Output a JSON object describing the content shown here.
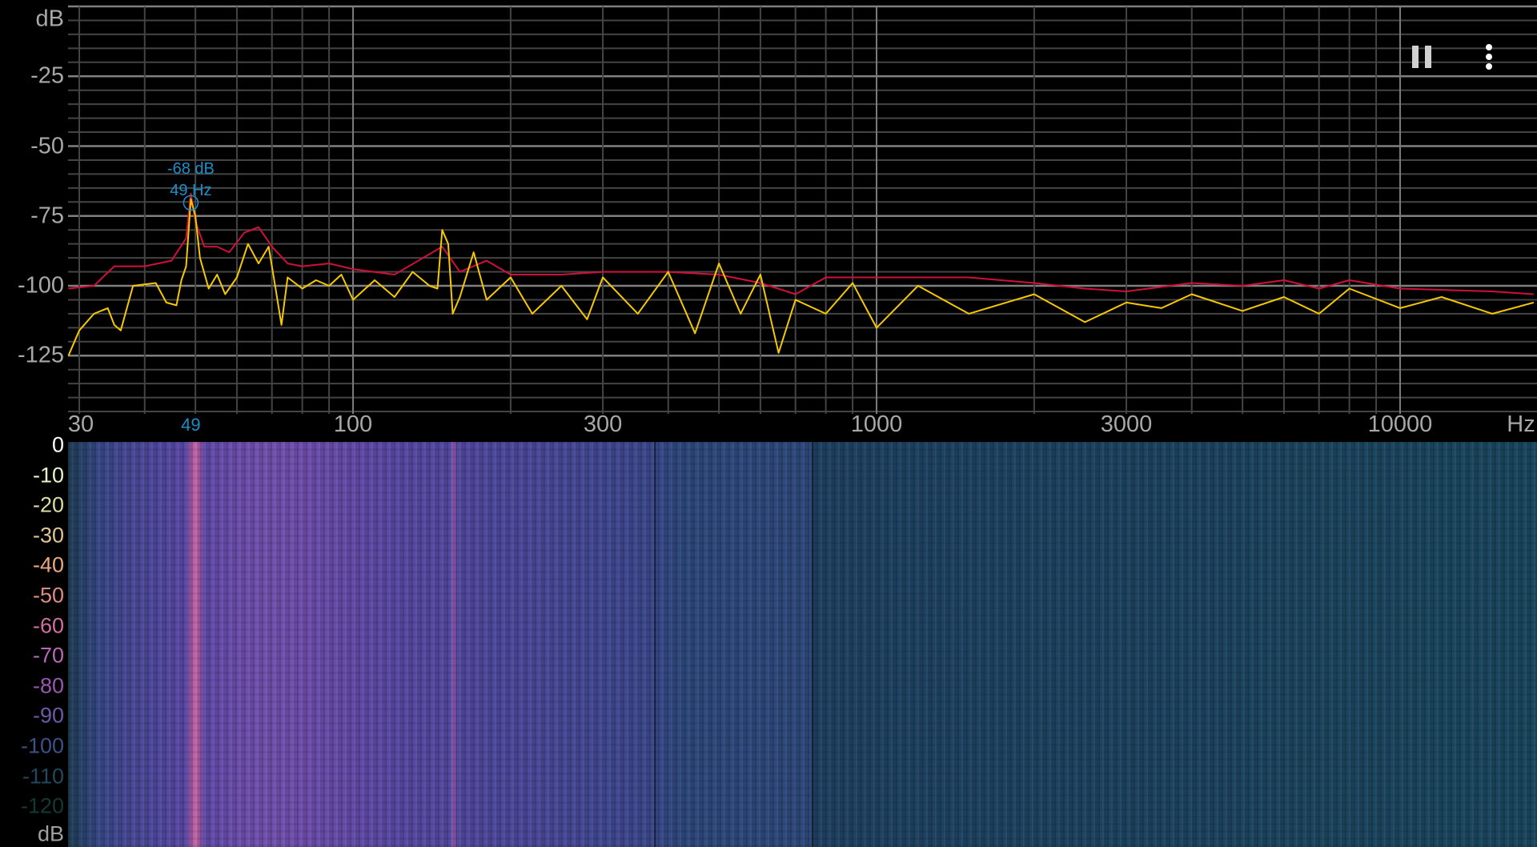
{
  "chart_data": {
    "type": "line",
    "xscale": "log",
    "xlim": [
      28.6,
      18200
    ],
    "ylim": [
      -145,
      0
    ],
    "ylabel": "dB",
    "xlabel": "Hz",
    "grid": true,
    "y_ticks": [
      "dB",
      "-25",
      "-50",
      "-75",
      "-100",
      "-125"
    ],
    "y_tick_values": [
      0,
      -25,
      -50,
      -75,
      -100,
      -125
    ],
    "x_ticks": [
      {
        "label": "30",
        "value": 30
      },
      {
        "label": "100",
        "value": 100
      },
      {
        "label": "300",
        "value": 300
      },
      {
        "label": "1000",
        "value": 1000
      },
      {
        "label": "3000",
        "value": 3000
      },
      {
        "label": "10000",
        "value": 10000
      },
      {
        "label": "Hz",
        "value": 17000
      }
    ],
    "series": [
      {
        "color": "#f5c800",
        "x": [
          28.6,
          30,
          32,
          34,
          35,
          36,
          38,
          42,
          44,
          46,
          47,
          48,
          49,
          50,
          51,
          53,
          55,
          57,
          60,
          63,
          66,
          69,
          71,
          73,
          75,
          80,
          85,
          90,
          95,
          100,
          110,
          120,
          130,
          140,
          145,
          148,
          152,
          155,
          160,
          170,
          180,
          200,
          220,
          250,
          280,
          300,
          350,
          400,
          450,
          500,
          550,
          600,
          650,
          700,
          800,
          900,
          1000,
          1200,
          1500,
          2000,
          2500,
          3000,
          3500,
          4000,
          5000,
          6000,
          7000,
          8000,
          10000,
          12000,
          15000,
          18000
        ],
        "y": [
          -125,
          -116,
          -110,
          -108,
          -114,
          -116,
          -100,
          -99,
          -106,
          -107,
          -98,
          -93,
          -69,
          -75,
          -90,
          -101,
          -96,
          -103,
          -97,
          -85,
          -92,
          -86,
          -100,
          -114,
          -97,
          -101,
          -98,
          -100,
          -96,
          -105,
          -98,
          -104,
          -95,
          -100,
          -101,
          -80,
          -85,
          -110,
          -104,
          -88,
          -105,
          -97,
          -110,
          -100,
          -112,
          -97,
          -110,
          -95,
          -117,
          -92,
          -110,
          -96,
          -124,
          -105,
          -110,
          -99,
          -115,
          -100,
          -110,
          -103,
          -113,
          -106,
          -108,
          -103,
          -109,
          -104,
          -110,
          -101,
          -108,
          -104,
          -110,
          -106
        ]
      },
      {
        "color": "#d0103a",
        "x": [
          28.6,
          32,
          35,
          40,
          45,
          48,
          49,
          50,
          52,
          55,
          58,
          62,
          66,
          70,
          75,
          80,
          90,
          100,
          120,
          148,
          160,
          180,
          200,
          250,
          300,
          400,
          500,
          600,
          700,
          800,
          1000,
          1500,
          2000,
          2500,
          3000,
          4000,
          5000,
          6000,
          7000,
          8000,
          10000,
          15000,
          18000
        ],
        "y": [
          -101,
          -100,
          -93,
          -93,
          -91,
          -83,
          -67,
          -77,
          -86,
          -86,
          -88,
          -81,
          -79,
          -86,
          -92,
          -93,
          -92,
          -94,
          -96,
          -86,
          -95,
          -91,
          -96,
          -96,
          -95,
          -95,
          -96,
          -99,
          -103,
          -97,
          -97,
          -97,
          -99,
          -101,
          -102,
          -99,
          -100,
          -98,
          -101,
          -98,
          -101,
          -102,
          -103
        ]
      }
    ],
    "peak": {
      "db_label": "-68 dB",
      "hz_label": "49 Hz",
      "axis_label": "49",
      "freq": 49,
      "db": -68,
      "color": "#1b8fca"
    }
  },
  "spectrogram": {
    "scale_labels": [
      "0",
      "-10",
      "-20",
      "-30",
      "-40",
      "-50",
      "-60",
      "-70",
      "-80",
      "-90",
      "-100",
      "-110",
      "-120"
    ],
    "scale_colors": [
      "#ffffff",
      "#e8f2cc",
      "#dcdca4",
      "#e2c494",
      "#e8a882",
      "#e08a88",
      "#d070a0",
      "#b868b8",
      "#9858b0",
      "#7058a8",
      "#3c5088",
      "#22485e",
      "#123a30"
    ],
    "unit": "dB"
  },
  "controls": {
    "pause": "pause-icon",
    "menu": "more-vert-icon"
  }
}
